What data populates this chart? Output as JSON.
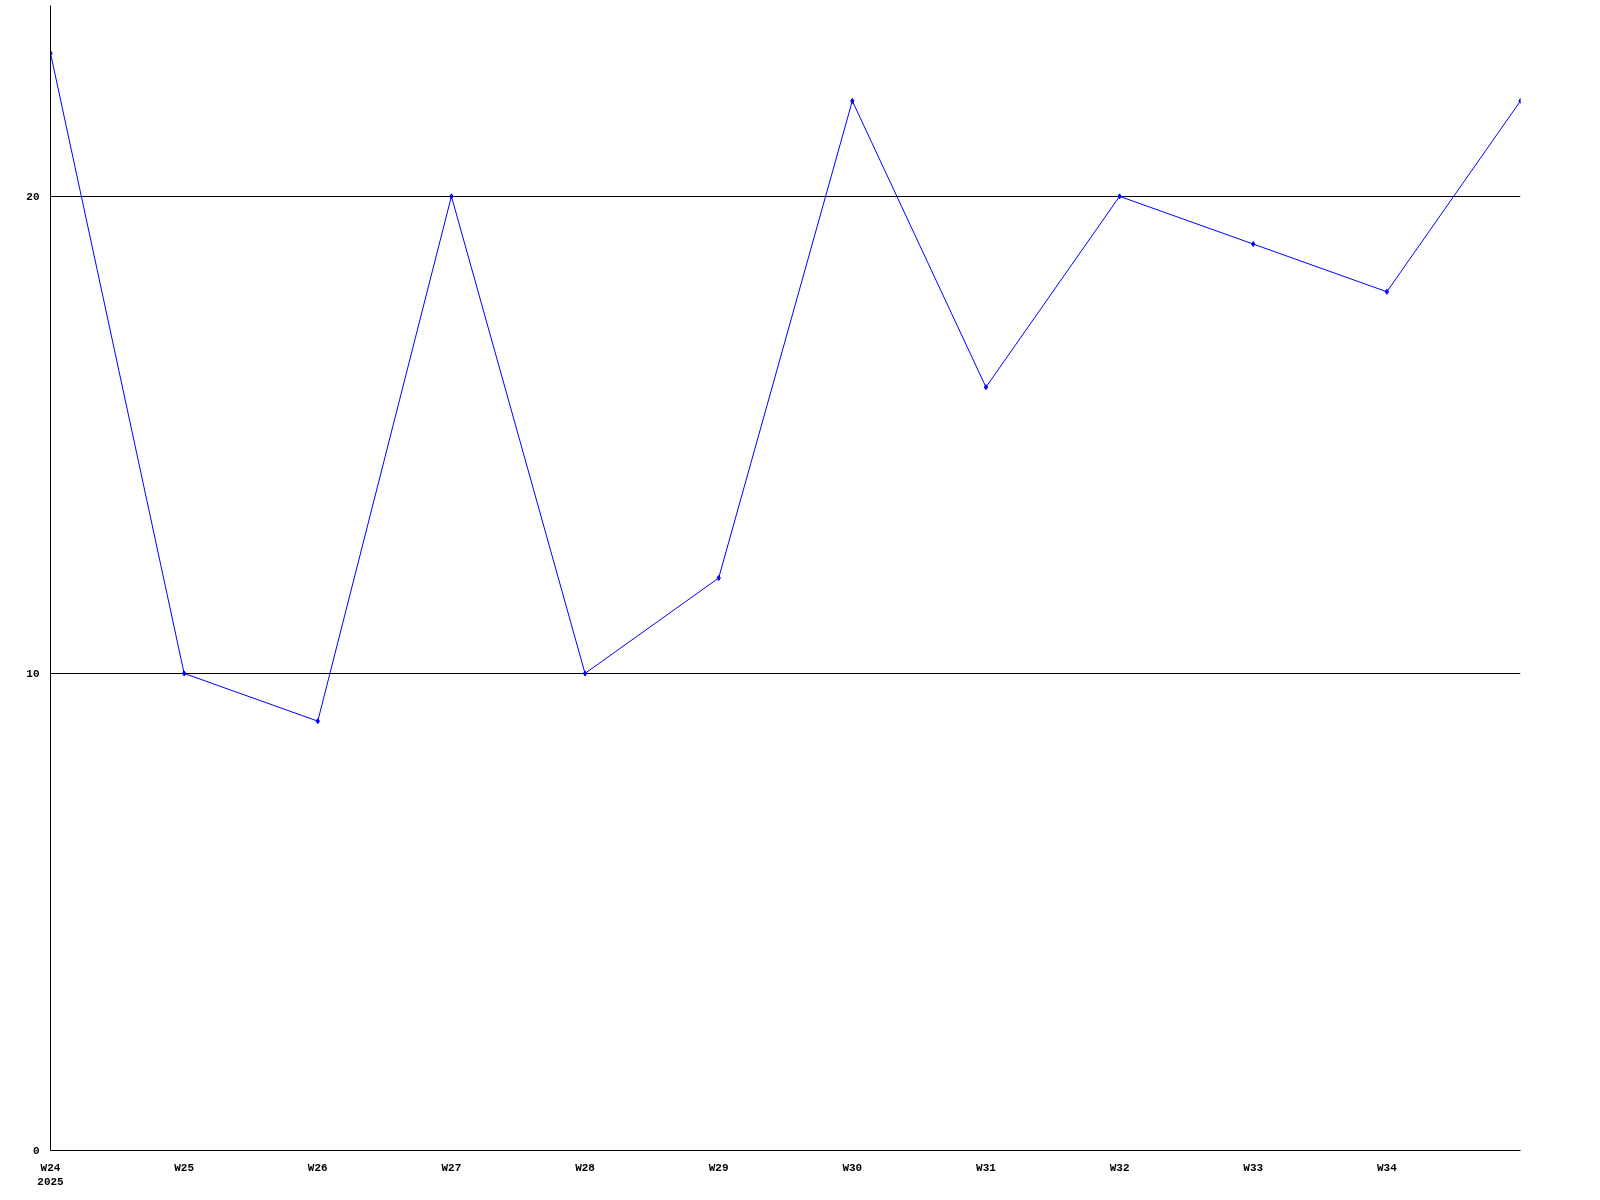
{
  "chart_data": {
    "type": "line",
    "categories": [
      "W24\n2025",
      "W25",
      "W26",
      "W27",
      "W28",
      "W29",
      "W30",
      "W31",
      "W32",
      "W33",
      "W34",
      null
    ],
    "series": [
      {
        "color": "#0000ff",
        "values": [
          23,
          10,
          9,
          20,
          10,
          12,
          22,
          16,
          20,
          19,
          18,
          22
        ]
      }
    ],
    "ylim": [
      0,
      24
    ],
    "yticks": [
      0,
      10,
      20
    ],
    "grid": "y",
    "marker": "diamond",
    "line_style": "solid"
  }
}
